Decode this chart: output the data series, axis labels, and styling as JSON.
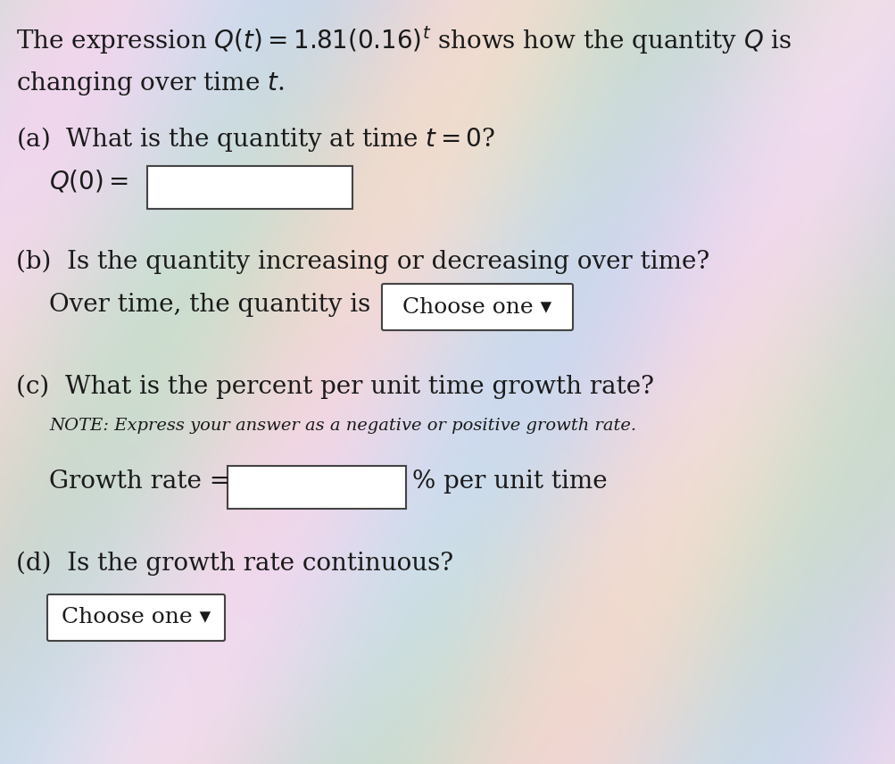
{
  "bg_color": "#d8d4cc",
  "text_color": "#1a1a1a",
  "title_line1": "The expression $Q(t) = 1.81(0.16)^t$ shows how the quantity $Q$ is",
  "title_line2": "changing over time $t$.",
  "part_a_label": "(a)  What is the quantity at time $t = 0$?",
  "part_a_eq": "$Q(0) =$",
  "part_b_label": "(b)  Is the quantity increasing or decreasing over time?",
  "part_b_text": "Over time, the quantity is",
  "part_b_dropdown": "Choose one ▾",
  "part_c_label": "(c)  What is the percent per unit time growth rate?",
  "part_c_note": "NOTE: Express your answer as a negative or positive growth rate.",
  "part_c_text": "Growth rate =",
  "part_c_suffix": "% per unit time",
  "part_d_label": "(d)  Is the growth rate continuous?",
  "part_d_dropdown": "Choose one ▾",
  "font_size_main": 20,
  "font_size_note": 14,
  "font_size_dropdown": 18
}
